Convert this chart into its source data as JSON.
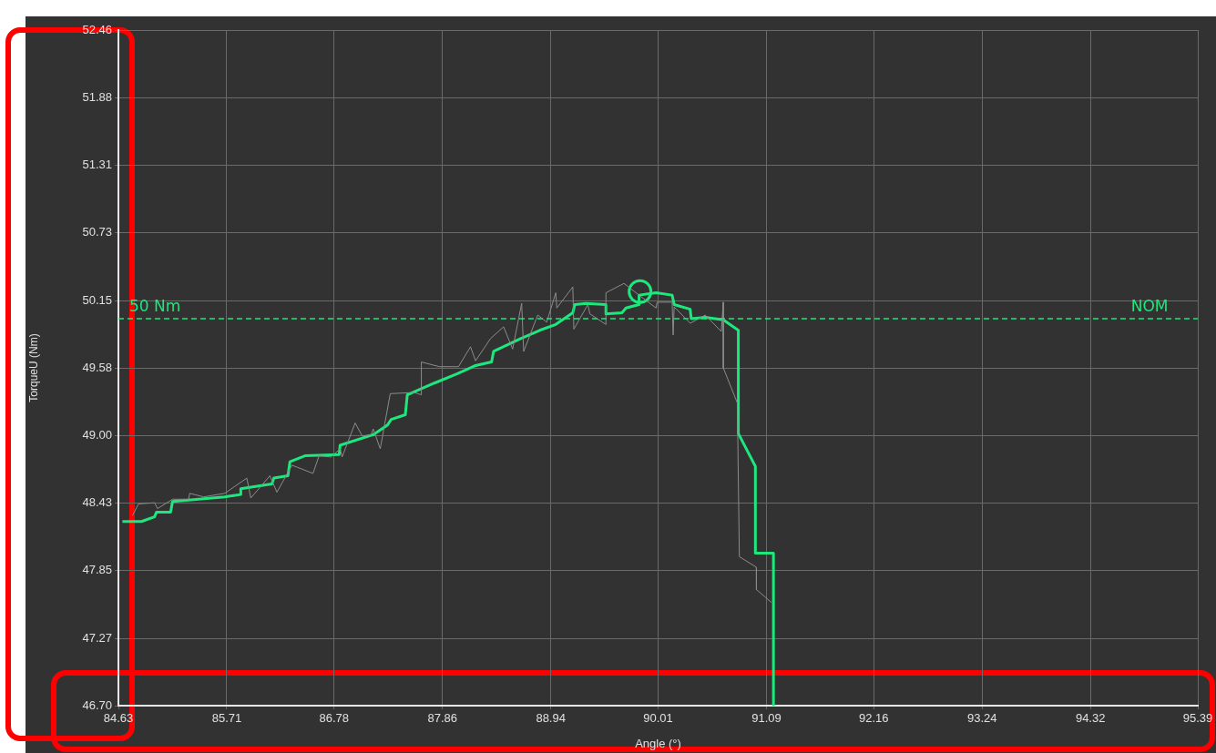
{
  "chart_data": {
    "type": "line",
    "xlabel": "Angle (°)",
    "ylabel": "TorqueU (Nm)",
    "xlim": [
      84.63,
      95.39
    ],
    "xticks": [
      84.63,
      85.71,
      86.78,
      87.86,
      88.94,
      90.01,
      91.09,
      92.16,
      93.24,
      94.32,
      95.39
    ],
    "ylim": [
      46.7,
      52.46
    ],
    "yticks": [
      {
        "value": 46.7,
        "label": "46.70"
      },
      47.27,
      47.85,
      48.43,
      {
        "value": 49.0,
        "label": "49.00"
      },
      49.58,
      50.15,
      50.73,
      51.31,
      51.88,
      52.46
    ],
    "grid": true,
    "legend": false,
    "marker": "none",
    "line_style": "solid",
    "ref_lines": [
      {
        "axis": "y",
        "value": 50,
        "label": "50 Nm",
        "color": "#1de87d",
        "line_style": "dashed"
      }
    ],
    "annotations": [
      {
        "text": "NOM",
        "x": 94.91,
        "y": 50
      }
    ],
    "series": [
      {
        "color": "#8c8c8c",
        "x": [
          84.77,
          84.83,
          84.99,
          85.02,
          85.17,
          85.33,
          85.34,
          85.48,
          85.69,
          85.91,
          85.95,
          86.14,
          86.21,
          86.36,
          86.57,
          86.63,
          86.75,
          86.84,
          86.86,
          86.99,
          87.06,
          87.15,
          87.17,
          87.24,
          87.34,
          87.58,
          87.65,
          87.65,
          87.83,
          88.02,
          88.14,
          88.19,
          88.34,
          88.47,
          88.56,
          88.65,
          88.67,
          88.81,
          88.9,
          88.99,
          89.0,
          89.16,
          89.17,
          89.31,
          89.33,
          89.49,
          89.49,
          89.67,
          89.82,
          89.99,
          90.0,
          90.15,
          90.16,
          90.17,
          90.33,
          90.48,
          90.64,
          90.66,
          90.66,
          90.8,
          90.82,
          90.99,
          90.99,
          91.14
        ],
        "values": [
          48.32,
          48.42,
          48.43,
          48.38,
          48.46,
          48.46,
          48.51,
          48.48,
          48.51,
          48.64,
          48.47,
          48.66,
          48.52,
          48.75,
          48.68,
          48.83,
          48.82,
          48.89,
          48.82,
          49.11,
          49.0,
          49.01,
          49.06,
          48.89,
          49.36,
          49.37,
          49.35,
          49.63,
          49.59,
          49.59,
          49.76,
          49.64,
          49.83,
          49.93,
          49.74,
          50.13,
          49.72,
          50.03,
          49.97,
          50.22,
          50.09,
          50.27,
          49.91,
          50.12,
          50.04,
          49.95,
          50.22,
          50.3,
          50.2,
          50.09,
          50.14,
          50.14,
          49.86,
          50.1,
          49.96,
          50.03,
          49.89,
          50.14,
          49.58,
          49.28,
          47.97,
          47.88,
          47.69,
          47.58
        ]
      },
      {
        "color": "#1de87d",
        "x": [
          84.67,
          84.86,
          84.99,
          85.01,
          85.15,
          85.17,
          85.69,
          85.85,
          85.85,
          86.16,
          86.18,
          86.32,
          86.34,
          86.49,
          86.83,
          86.84,
          87.17,
          87.31,
          87.35,
          87.49,
          87.51,
          87.78,
          88.01,
          88.19,
          88.35,
          88.37,
          88.64,
          88.83,
          88.99,
          89.16,
          89.18,
          89.29,
          89.49,
          89.49,
          89.65,
          89.69,
          89.82,
          89.82,
          89.99,
          90.15,
          90.17,
          90.33,
          90.34,
          90.48,
          90.66,
          90.81,
          90.81,
          90.98,
          90.98,
          91.16,
          91.16
        ],
        "values": [
          48.27,
          48.27,
          48.31,
          48.35,
          48.35,
          48.44,
          48.48,
          48.5,
          48.55,
          48.59,
          48.64,
          48.66,
          48.78,
          48.83,
          48.84,
          48.92,
          49.01,
          49.09,
          49.14,
          49.18,
          49.35,
          49.45,
          49.53,
          49.6,
          49.63,
          49.72,
          49.83,
          49.9,
          49.95,
          50.05,
          50.12,
          50.13,
          50.12,
          50.04,
          50.05,
          50.09,
          50.12,
          50.2,
          50.22,
          50.2,
          50.12,
          50.08,
          50.0,
          50.01,
          49.99,
          49.9,
          49.02,
          48.74,
          48.0,
          48.0,
          46.7
        ]
      },
      {
        "type": "scatter",
        "color": "#1de87d",
        "marker": "circle",
        "x": [
          89.83
        ],
        "values": [
          50.23
        ]
      }
    ]
  }
}
